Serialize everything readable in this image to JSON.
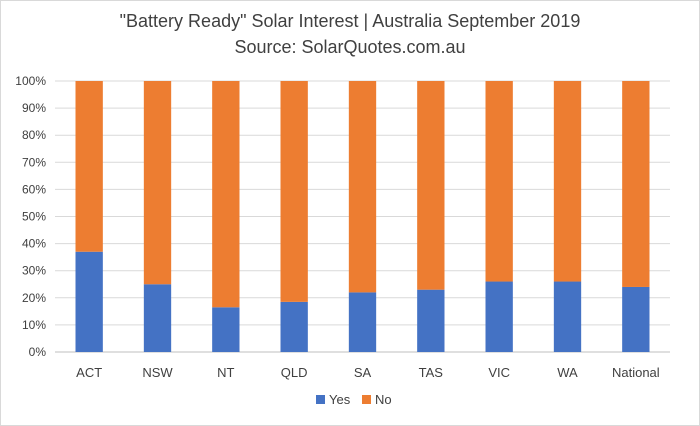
{
  "chart_data": {
    "type": "bar",
    "stacked": true,
    "title": "\"Battery Ready\" Solar Interest  | Australia September 2019",
    "subtitle": "Source: SolarQuotes.com.au",
    "categories": [
      "ACT",
      "NSW",
      "NT",
      "QLD",
      "SA",
      "TAS",
      "VIC",
      "WA",
      "National"
    ],
    "series": [
      {
        "name": "Yes",
        "color": "#4472c4",
        "values": [
          37,
          25,
          16.5,
          18.5,
          22,
          23,
          26,
          26,
          24
        ]
      },
      {
        "name": "No",
        "color": "#ed7d31",
        "values": [
          63,
          75,
          83.5,
          81.5,
          78,
          77,
          74,
          74,
          76
        ]
      }
    ],
    "ylim": [
      0,
      100
    ],
    "yticks": [
      "0%",
      "10%",
      "20%",
      "30%",
      "40%",
      "50%",
      "60%",
      "70%",
      "80%",
      "90%",
      "100%"
    ],
    "grid": true,
    "legend_position": "bottom"
  }
}
